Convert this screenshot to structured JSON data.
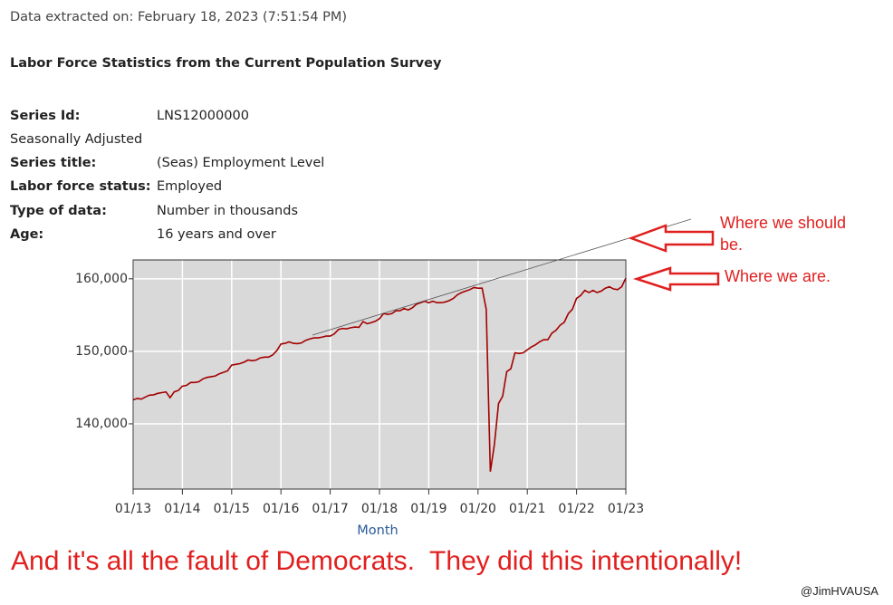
{
  "header": {
    "extracted": "Data extracted on: February 18, 2023 (7:51:54 PM)",
    "title": "Labor Force Statistics from the Current Population Survey"
  },
  "series_info": {
    "rows": [
      [
        "Series Id:",
        "LNS12000000"
      ],
      [
        "Seasonally Adjusted"
      ],
      [
        "Series title:",
        "(Seas) Employment Level"
      ],
      [
        "Labor force status:",
        "Employed"
      ],
      [
        "Type of data:",
        "Number in thousands"
      ],
      [
        "Age:",
        "16 years and over"
      ]
    ]
  },
  "chart_data": {
    "type": "line",
    "x_label": "Month",
    "color": "#a30000",
    "grid": true,
    "x": [
      "2013-01",
      "2013-02",
      "2013-03",
      "2013-04",
      "2013-05",
      "2013-06",
      "2013-07",
      "2013-08",
      "2013-09",
      "2013-10",
      "2013-11",
      "2013-12",
      "2014-01",
      "2014-02",
      "2014-03",
      "2014-04",
      "2014-05",
      "2014-06",
      "2014-07",
      "2014-08",
      "2014-09",
      "2014-10",
      "2014-11",
      "2014-12",
      "2015-01",
      "2015-02",
      "2015-03",
      "2015-04",
      "2015-05",
      "2015-06",
      "2015-07",
      "2015-08",
      "2015-09",
      "2015-10",
      "2015-11",
      "2015-12",
      "2016-01",
      "2016-02",
      "2016-03",
      "2016-04",
      "2016-05",
      "2016-06",
      "2016-07",
      "2016-08",
      "2016-09",
      "2016-10",
      "2016-11",
      "2016-12",
      "2017-01",
      "2017-02",
      "2017-03",
      "2017-04",
      "2017-05",
      "2017-06",
      "2017-07",
      "2017-08",
      "2017-09",
      "2017-10",
      "2017-11",
      "2017-12",
      "2018-01",
      "2018-02",
      "2018-03",
      "2018-04",
      "2018-05",
      "2018-06",
      "2018-07",
      "2018-08",
      "2018-09",
      "2018-10",
      "2018-11",
      "2018-12",
      "2019-01",
      "2019-02",
      "2019-03",
      "2019-04",
      "2019-05",
      "2019-06",
      "2019-07",
      "2019-08",
      "2019-09",
      "2019-10",
      "2019-11",
      "2019-12",
      "2020-01",
      "2020-02",
      "2020-03",
      "2020-04",
      "2020-05",
      "2020-06",
      "2020-07",
      "2020-08",
      "2020-09",
      "2020-10",
      "2020-11",
      "2020-12",
      "2021-01",
      "2021-02",
      "2021-03",
      "2021-04",
      "2021-05",
      "2021-06",
      "2021-07",
      "2021-08",
      "2021-09",
      "2021-10",
      "2021-11",
      "2021-12",
      "2022-01",
      "2022-02",
      "2022-03",
      "2022-04",
      "2022-05",
      "2022-06",
      "2022-07",
      "2022-08",
      "2022-09",
      "2022-10",
      "2022-11",
      "2022-12",
      "2023-01"
    ],
    "values": [
      143300,
      143500,
      143400,
      143700,
      143950,
      144000,
      144200,
      144300,
      144400,
      143600,
      144400,
      144600,
      145200,
      145300,
      145700,
      145700,
      145800,
      146200,
      146400,
      146500,
      146600,
      146900,
      147100,
      147300,
      148100,
      148200,
      148300,
      148500,
      148800,
      148700,
      148800,
      149100,
      149200,
      149200,
      149500,
      150100,
      151000,
      151100,
      151300,
      151100,
      151050,
      151150,
      151500,
      151700,
      151850,
      151850,
      151950,
      152100,
      152100,
      152400,
      153000,
      153150,
      153100,
      153250,
      153350,
      153300,
      154100,
      153800,
      153950,
      154150,
      154500,
      155200,
      155100,
      155200,
      155600,
      155600,
      155900,
      155700,
      156000,
      156500,
      156700,
      156900,
      156700,
      156900,
      156700,
      156700,
      156800,
      157000,
      157300,
      157800,
      158100,
      158300,
      158500,
      158800,
      158700,
      158700,
      155800,
      133400,
      137200,
      142800,
      143800,
      147200,
      147600,
      149800,
      149700,
      149800,
      150200,
      150600,
      150900,
      151300,
      151600,
      151600,
      152500,
      152900,
      153600,
      154000,
      155200,
      155800,
      157300,
      157700,
      158400,
      158100,
      158400,
      158100,
      158300,
      158700,
      158900,
      158600,
      158500,
      158900,
      160100
    ],
    "xlim": [
      "2013-01",
      "2023-01"
    ],
    "xticks": [
      {
        "value": "2013-01",
        "label": "01/13"
      },
      {
        "value": "2014-01",
        "label": "01/14"
      },
      {
        "value": "2015-01",
        "label": "01/15"
      },
      {
        "value": "2016-01",
        "label": "01/16"
      },
      {
        "value": "2017-01",
        "label": "01/17"
      },
      {
        "value": "2018-01",
        "label": "01/18"
      },
      {
        "value": "2019-01",
        "label": "01/19"
      },
      {
        "value": "2020-01",
        "label": "01/20"
      },
      {
        "value": "2021-01",
        "label": "01/21"
      },
      {
        "value": "2022-01",
        "label": "01/22"
      },
      {
        "value": "2023-01",
        "label": "01/23"
      }
    ],
    "ylim": [
      131000,
      162600
    ],
    "yticks": [
      {
        "value": 140000,
        "label": "140,000"
      },
      {
        "value": 150000,
        "label": "150,000"
      },
      {
        "value": 160000,
        "label": "160,000"
      }
    ],
    "annotations": [
      "Where we should be.",
      "Where we are."
    ]
  },
  "caption": "And it's all the fault of Democrats.  They did this intentionally!",
  "credit": "@JimHVAUSA"
}
